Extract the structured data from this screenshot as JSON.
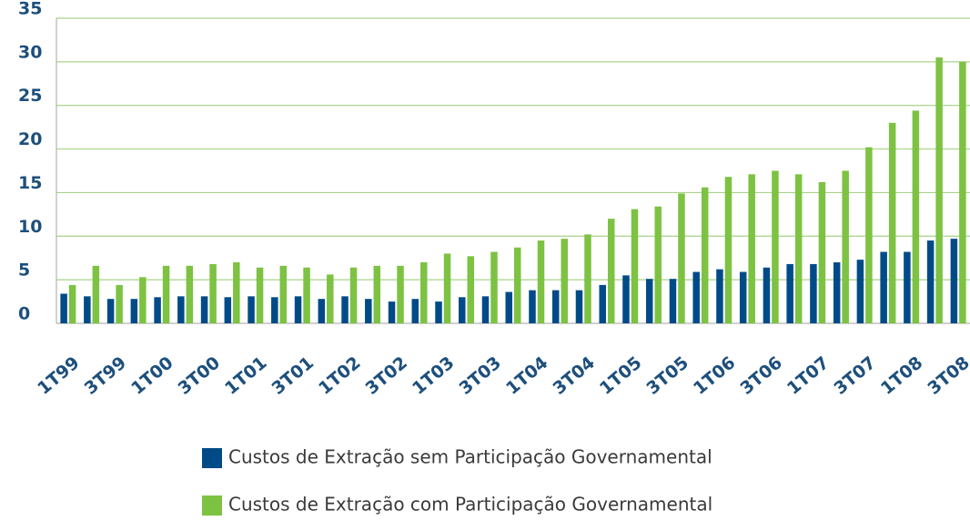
{
  "chart_data": {
    "type": "bar",
    "categories": [
      "1T99",
      null,
      "3T99",
      null,
      "1T00",
      null,
      "3T00",
      null,
      "1T01",
      null,
      "3T01",
      null,
      "1T02",
      null,
      "3T02",
      null,
      "1T03",
      null,
      "3T03",
      null,
      "1T04",
      null,
      "3T04",
      null,
      "1T05",
      null,
      "3T05",
      null,
      "1T06",
      null,
      "3T06",
      null,
      "1T07",
      null,
      "3T07",
      null,
      "1T08",
      null,
      "3T08"
    ],
    "series": [
      {
        "name": "Custos de Extração sem Participação Governamental",
        "color": "#004b87",
        "values": [
          3.4,
          3.1,
          2.8,
          2.8,
          3.0,
          3.1,
          3.1,
          3.0,
          3.1,
          3.0,
          3.1,
          2.8,
          3.1,
          2.8,
          2.5,
          2.8,
          2.5,
          3.0,
          3.1,
          3.6,
          3.8,
          3.8,
          3.8,
          4.4,
          5.5,
          5.1,
          5.1,
          5.9,
          6.2,
          5.9,
          6.4,
          6.8,
          6.8,
          7.0,
          7.3,
          8.2,
          8.2,
          9.5,
          9.7
        ]
      },
      {
        "name": "Custos de Extração com Participação Governamental",
        "color": "#7dc242",
        "values": [
          4.4,
          6.6,
          4.4,
          5.3,
          6.6,
          6.6,
          6.8,
          7.0,
          6.4,
          6.6,
          6.4,
          5.6,
          6.4,
          6.6,
          6.6,
          7.0,
          8.0,
          7.7,
          8.2,
          8.7,
          9.5,
          9.7,
          10.2,
          12.0,
          13.1,
          13.4,
          14.9,
          15.6,
          16.8,
          17.1,
          17.5,
          17.1,
          16.2,
          17.5,
          20.2,
          23.0,
          24.4,
          30.5,
          30.0
        ]
      }
    ],
    "ylim": [
      0,
      35
    ],
    "yticks": [
      0,
      5,
      10,
      15,
      20,
      25,
      30,
      35
    ],
    "grid": true
  }
}
